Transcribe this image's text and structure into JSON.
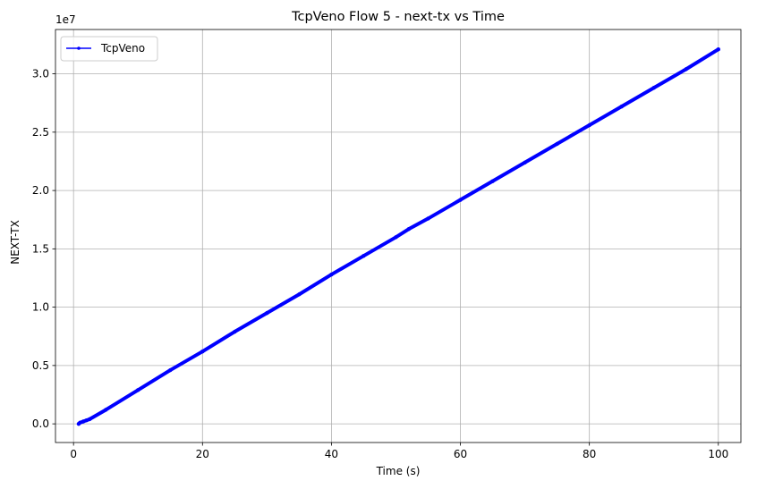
{
  "chart_data": {
    "type": "line",
    "title": "TcpVeno Flow 5 - next-tx vs Time",
    "xlabel": "Time (s)",
    "ylabel": "NEXT-TX",
    "y_offset_label": "1e7",
    "xlim": [
      -2.8,
      103.5
    ],
    "ylim": [
      -0.16,
      3.38
    ],
    "y_unit_multiplier": 10000000,
    "x_ticks": [
      0,
      20,
      40,
      60,
      80,
      100
    ],
    "x_tick_labels": [
      "0",
      "20",
      "40",
      "60",
      "80",
      "100"
    ],
    "y_ticks": [
      0.0,
      0.5,
      1.0,
      1.5,
      2.0,
      2.5,
      3.0
    ],
    "y_tick_labels": [
      "0.0",
      "0.5",
      "1.0",
      "1.5",
      "2.0",
      "2.5",
      "3.0"
    ],
    "grid": true,
    "legend_position": "upper-left",
    "series": [
      {
        "name": "TcpVeno",
        "color": "#0000ff",
        "x": [
          0.8,
          1.0,
          1.5,
          2.0,
          2.5,
          5,
          10,
          15,
          20,
          25,
          30,
          35,
          40,
          45,
          50,
          52,
          55,
          60,
          65,
          70,
          75,
          80,
          85,
          90,
          95,
          100
        ],
        "y": [
          0.0,
          0.01,
          0.02,
          0.03,
          0.04,
          0.12,
          0.29,
          0.46,
          0.62,
          0.79,
          0.95,
          1.11,
          1.28,
          1.44,
          1.6,
          1.67,
          1.76,
          1.92,
          2.08,
          2.24,
          2.4,
          2.56,
          2.72,
          2.88,
          3.04,
          3.21
        ]
      }
    ]
  }
}
